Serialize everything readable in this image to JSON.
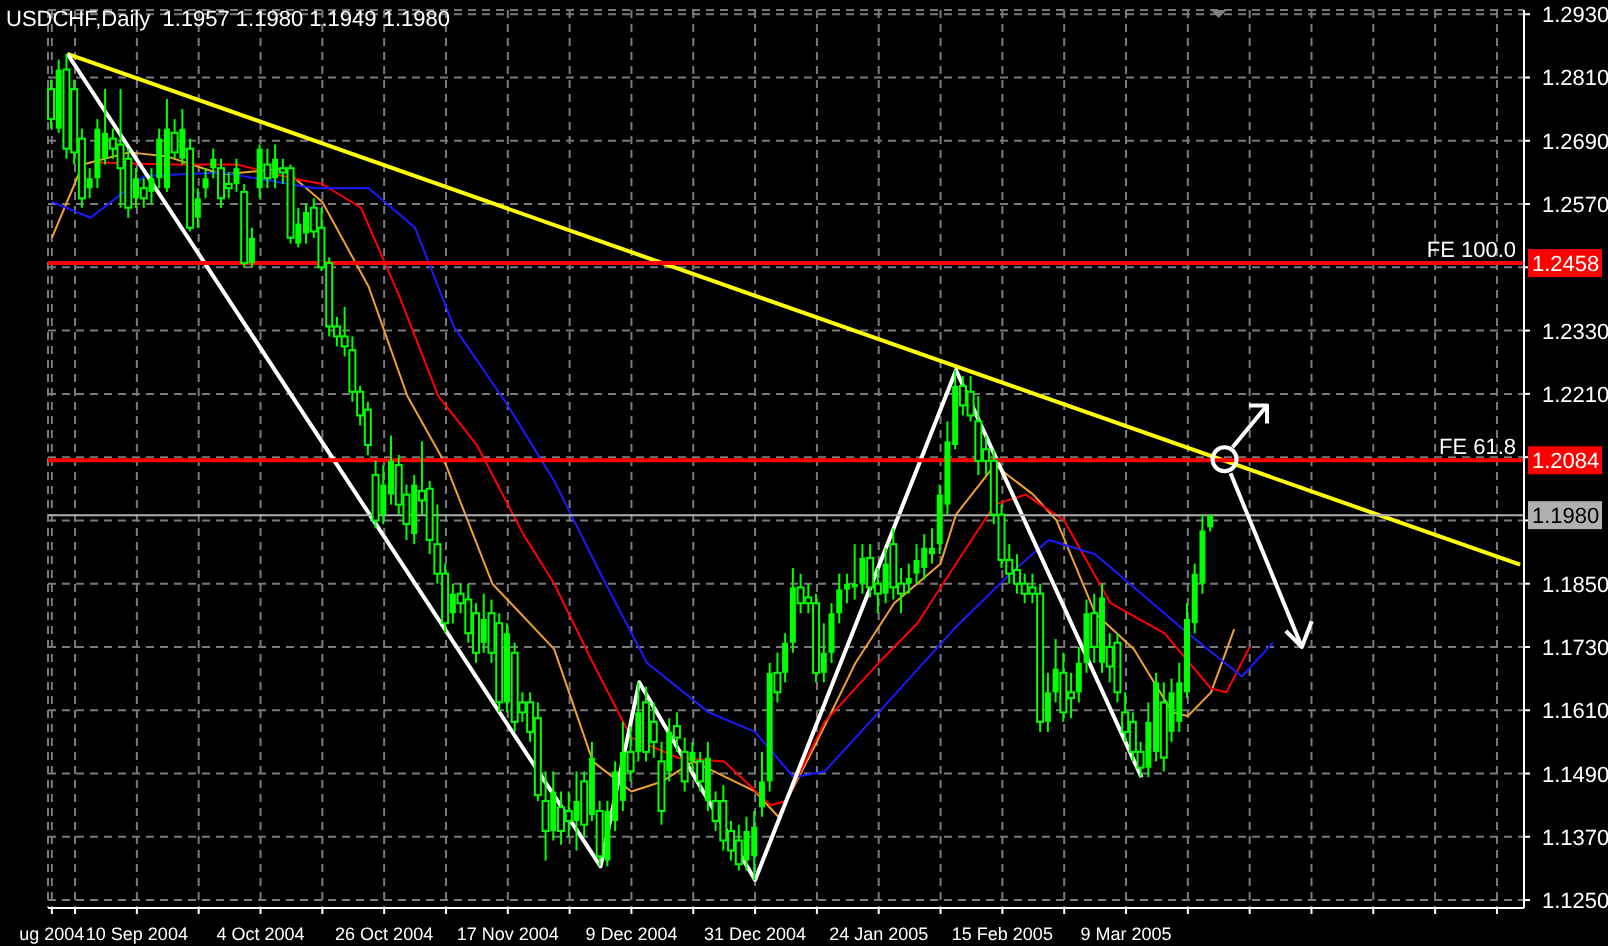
{
  "chart_data": {
    "type": "candlestick",
    "title": "USDCHF,Daily  1.1957 1.1980 1.1949 1.1980",
    "color": "#00ff00",
    "categories": [
      "ug 2004",
      null,
      null,
      null,
      null,
      null,
      null,
      null,
      null,
      null,
      null,
      "10 Sep 2004",
      null,
      null,
      null,
      null,
      null,
      null,
      null,
      null,
      null,
      null,
      null,
      null,
      null,
      null,
      null,
      "4 Oct 2004",
      null,
      null,
      null,
      null,
      null,
      null,
      null,
      null,
      null,
      null,
      null,
      null,
      null,
      null,
      null,
      "26 Oct 2004",
      null,
      null,
      null,
      null,
      null,
      null,
      null,
      null,
      null,
      null,
      null,
      null,
      null,
      null,
      null,
      "17 Nov 2004",
      null,
      null,
      null,
      null,
      null,
      null,
      null,
      null,
      null,
      null,
      null,
      null,
      null,
      null,
      null,
      "9 Dec 2004",
      null,
      null,
      null,
      null,
      null,
      null,
      null,
      null,
      null,
      null,
      null,
      null,
      null,
      null,
      null,
      "31 Dec 2004",
      null,
      null,
      null,
      null,
      null,
      null,
      null,
      null,
      null,
      null,
      null,
      null,
      null,
      null,
      null,
      "24 Jan 2005",
      null,
      null,
      null,
      null,
      null,
      null,
      null,
      null,
      null,
      null,
      null,
      null,
      null,
      null,
      null,
      "15 Feb 2005",
      null,
      null,
      null,
      null,
      null,
      null,
      null,
      null,
      null,
      null,
      null,
      null,
      null,
      null,
      null,
      "9 Mar 2005",
      null,
      null,
      null,
      null,
      null,
      null,
      null,
      null,
      null,
      null,
      null,
      null,
      null,
      null,
      null,
      null,
      null,
      null,
      null,
      null,
      null,
      null,
      null,
      null,
      null,
      null,
      null,
      null,
      null,
      null,
      null,
      null,
      null,
      null,
      null,
      null,
      null,
      null,
      null,
      null,
      null,
      null,
      null,
      null,
      null,
      null,
      null,
      null,
      null,
      null,
      null
    ],
    "ohlc": [
      [
        1.2788,
        1.2806,
        1.2713,
        1.2731
      ],
      [
        1.2713,
        1.2844,
        1.2705,
        1.2825
      ],
      [
        1.2825,
        1.2855,
        1.2656,
        1.2675
      ],
      [
        1.2788,
        1.2806,
        1.2645,
        1.2668
      ],
      [
        1.2694,
        1.2713,
        1.2563,
        1.2581
      ],
      [
        1.26,
        1.2638,
        1.2581,
        1.2619
      ],
      [
        1.2619,
        1.2731,
        1.26,
        1.2713
      ],
      [
        1.2656,
        1.2788,
        1.2645,
        1.2705
      ],
      [
        1.2694,
        1.2713,
        1.2656,
        1.2675
      ],
      [
        1.2683,
        1.2788,
        1.2563,
        1.2638
      ],
      [
        1.2656,
        1.2675,
        1.2544,
        1.2563
      ],
      [
        1.2581,
        1.2638,
        1.2563,
        1.2619
      ],
      [
        1.26,
        1.2619,
        1.2563,
        1.2581
      ],
      [
        1.2593,
        1.2638,
        1.257,
        1.2619
      ],
      [
        1.2619,
        1.2713,
        1.26,
        1.2694
      ],
      [
        1.26,
        1.2769,
        1.2593,
        1.2713
      ],
      [
        1.2705,
        1.2731,
        1.2656,
        1.2668
      ],
      [
        1.2656,
        1.275,
        1.2645,
        1.2713
      ],
      [
        1.2675,
        1.2694,
        1.2518,
        1.2525
      ],
      [
        1.2544,
        1.26,
        1.2525,
        1.2581
      ],
      [
        1.26,
        1.2638,
        1.2581,
        1.2619
      ],
      [
        1.2638,
        1.2675,
        1.2619,
        1.2656
      ],
      [
        1.2638,
        1.2656,
        1.2563,
        1.2581
      ],
      [
        1.2608,
        1.263,
        1.2581,
        1.26
      ],
      [
        1.2608,
        1.2656,
        1.2593,
        1.2638
      ],
      [
        1.2593,
        1.2608,
        1.245,
        1.2458
      ],
      [
        1.2458,
        1.2525,
        1.245,
        1.2506
      ],
      [
        1.26,
        1.2683,
        1.2581,
        1.2675
      ],
      [
        1.2645,
        1.2675,
        1.26,
        1.2619
      ],
      [
        1.2619,
        1.2683,
        1.26,
        1.2656
      ],
      [
        1.2638,
        1.2656,
        1.2608,
        1.263
      ],
      [
        1.2638,
        1.2645,
        1.2495,
        1.2506
      ],
      [
        1.2495,
        1.2563,
        1.2488,
        1.2533
      ],
      [
        1.2514,
        1.257,
        1.2495,
        1.2555
      ],
      [
        1.2563,
        1.2581,
        1.2506,
        1.2518
      ],
      [
        1.2525,
        1.2563,
        1.2443,
        1.245
      ],
      [
        1.2458,
        1.2469,
        1.2319,
        1.2338
      ],
      [
        1.2338,
        1.2356,
        1.23,
        1.2319
      ],
      [
        1.2319,
        1.2375,
        1.2281,
        1.23
      ],
      [
        1.2293,
        1.2319,
        1.2195,
        1.2214
      ],
      [
        1.2214,
        1.2225,
        1.215,
        1.2169
      ],
      [
        1.218,
        1.2195,
        1.2094,
        1.2113
      ],
      [
        1.2056,
        1.2083,
        1.1955,
        1.197
      ],
      [
        1.1981,
        1.2075,
        1.1963,
        1.2038
      ],
      [
        1.2019,
        1.2131,
        1.2,
        1.2083
      ],
      [
        1.2075,
        1.2094,
        1.1981,
        1.2
      ],
      [
        1.2019,
        1.2038,
        1.1933,
        1.1963
      ],
      [
        1.1944,
        1.2056,
        1.1925,
        1.2038
      ],
      [
        1.2026,
        1.212,
        1.1981,
        1.2008
      ],
      [
        1.203,
        1.2045,
        1.1906,
        1.1933
      ],
      [
        1.1925,
        1.2,
        1.185,
        1.1869
      ],
      [
        1.1869,
        1.1888,
        1.1756,
        1.1775
      ],
      [
        1.1794,
        1.185,
        1.1775,
        1.1831
      ],
      [
        1.1831,
        1.185,
        1.1794,
        1.1813
      ],
      [
        1.182,
        1.185,
        1.1738,
        1.1756
      ],
      [
        1.1794,
        1.1813,
        1.17,
        1.1719
      ],
      [
        1.1738,
        1.1831,
        1.1719,
        1.1783
      ],
      [
        1.1794,
        1.182,
        1.17,
        1.1719
      ],
      [
        1.1775,
        1.1794,
        1.1606,
        1.1625
      ],
      [
        1.1625,
        1.1775,
        1.1606,
        1.1756
      ],
      [
        1.1719,
        1.1738,
        1.1569,
        1.1588
      ],
      [
        1.1625,
        1.1644,
        1.1588,
        1.1606
      ],
      [
        1.1625,
        1.1644,
        1.155,
        1.1569
      ],
      [
        1.1595,
        1.1625,
        1.1438,
        1.1449
      ],
      [
        1.1438,
        1.1494,
        1.1325,
        1.1381
      ],
      [
        1.1381,
        1.1494,
        1.1363,
        1.1456
      ],
      [
        1.1426,
        1.1456,
        1.1355,
        1.1381
      ],
      [
        1.1419,
        1.1456,
        1.137,
        1.14
      ],
      [
        1.14,
        1.1494,
        1.1344,
        1.1438
      ],
      [
        1.1475,
        1.1494,
        1.137,
        1.1393
      ],
      [
        1.1411,
        1.155,
        1.14,
        1.152
      ],
      [
        1.1419,
        1.1438,
        1.1314,
        1.1333
      ],
      [
        1.1325,
        1.1438,
        1.1314,
        1.1419
      ],
      [
        1.14,
        1.1513,
        1.1381,
        1.1494
      ],
      [
        1.1438,
        1.1588,
        1.1419,
        1.1531
      ],
      [
        1.1531,
        1.158,
        1.1475,
        1.1494
      ],
      [
        1.1531,
        1.1663,
        1.1513,
        1.1606
      ],
      [
        1.1625,
        1.1655,
        1.1513,
        1.1531
      ],
      [
        1.1588,
        1.1625,
        1.152,
        1.155
      ],
      [
        1.1513,
        1.155,
        1.1393,
        1.1419
      ],
      [
        1.1494,
        1.1595,
        1.1475,
        1.1569
      ],
      [
        1.158,
        1.1606,
        1.1531,
        1.1558
      ],
      [
        1.1531,
        1.1558,
        1.1456,
        1.1475
      ],
      [
        1.1513,
        1.155,
        1.1494,
        1.1531
      ],
      [
        1.1513,
        1.1531,
        1.1456,
        1.1475
      ],
      [
        1.1438,
        1.155,
        1.1419,
        1.152
      ],
      [
        1.1438,
        1.1456,
        1.1381,
        1.14
      ],
      [
        1.1438,
        1.1468,
        1.1344,
        1.1363
      ],
      [
        1.1381,
        1.14,
        1.1325,
        1.1344
      ],
      [
        1.1363,
        1.1393,
        1.1306,
        1.1318
      ],
      [
        1.1325,
        1.1408,
        1.1306,
        1.1381
      ],
      [
        1.1333,
        1.1419,
        1.1288,
        1.1389
      ],
      [
        1.1426,
        1.1531,
        1.1408,
        1.1475
      ],
      [
        1.1475,
        1.17,
        1.1456,
        1.1681
      ],
      [
        1.1681,
        1.1719,
        1.1625,
        1.1644
      ],
      [
        1.1681,
        1.1756,
        1.1663,
        1.1738
      ],
      [
        1.1738,
        1.188,
        1.1719,
        1.1843
      ],
      [
        1.1843,
        1.1869,
        1.1794,
        1.1813
      ],
      [
        1.1824,
        1.185,
        1.1794,
        1.1813
      ],
      [
        1.1813,
        1.1831,
        1.1663,
        1.1681
      ],
      [
        1.1681,
        1.1775,
        1.1663,
        1.1719
      ],
      [
        1.1719,
        1.1813,
        1.17,
        1.1794
      ],
      [
        1.1794,
        1.1869,
        1.1775,
        1.1839
      ],
      [
        1.1839,
        1.1869,
        1.1813,
        1.185
      ],
      [
        1.1843,
        1.1925,
        1.182,
        1.185
      ],
      [
        1.185,
        1.1925,
        1.1831,
        1.1899
      ],
      [
        1.1899,
        1.1925,
        1.1824,
        1.1843
      ],
      [
        1.185,
        1.188,
        1.1794,
        1.1831
      ],
      [
        1.1831,
        1.1918,
        1.1813,
        1.1888
      ],
      [
        1.1925,
        1.1955,
        1.182,
        1.1843
      ],
      [
        1.185,
        1.188,
        1.1794,
        1.1831
      ],
      [
        1.185,
        1.1888,
        1.1831,
        1.1861
      ],
      [
        1.1869,
        1.1925,
        1.185,
        1.1895
      ],
      [
        1.188,
        1.1944,
        1.1858,
        1.1918
      ],
      [
        1.1906,
        1.1955,
        1.1888,
        1.1918
      ],
      [
        1.1925,
        1.2038,
        1.1906,
        1.2019
      ],
      [
        1.2,
        1.2158,
        1.1981,
        1.212
      ],
      [
        1.2113,
        1.2255,
        1.2105,
        1.2225
      ],
      [
        1.2225,
        1.2244,
        1.2169,
        1.2188
      ],
      [
        1.2214,
        1.2244,
        1.2158,
        1.2169
      ],
      [
        1.2158,
        1.2206,
        1.2056,
        1.2083
      ],
      [
        1.2105,
        1.2131,
        1.2056,
        1.2083
      ],
      [
        1.2083,
        1.2105,
        1.1963,
        1.1981
      ],
      [
        1.1981,
        1.2,
        1.188,
        1.1895
      ],
      [
        1.1895,
        1.1925,
        1.185,
        1.1869
      ],
      [
        1.1876,
        1.1906,
        1.1831,
        1.185
      ],
      [
        1.185,
        1.1869,
        1.1813,
        1.1831
      ],
      [
        1.1843,
        1.1869,
        1.1813,
        1.1831
      ],
      [
        1.1831,
        1.185,
        1.1569,
        1.1588
      ],
      [
        1.1588,
        1.1681,
        1.1569,
        1.1644
      ],
      [
        1.1644,
        1.1745,
        1.1625,
        1.1689
      ],
      [
        1.1681,
        1.1719,
        1.1588,
        1.1606
      ],
      [
        1.1644,
        1.1681,
        1.1595,
        1.1633
      ],
      [
        1.1644,
        1.173,
        1.1625,
        1.17
      ],
      [
        1.17,
        1.182,
        1.1681,
        1.1794
      ],
      [
        1.1794,
        1.1831,
        1.17,
        1.173
      ],
      [
        1.17,
        1.185,
        1.1681,
        1.1824
      ],
      [
        1.173,
        1.1756,
        1.1663,
        1.1693
      ],
      [
        1.1738,
        1.1756,
        1.1625,
        1.1644
      ],
      [
        1.1606,
        1.1644,
        1.155,
        1.1569
      ],
      [
        1.1588,
        1.1606,
        1.1513,
        1.1531
      ],
      [
        1.1531,
        1.155,
        1.1483,
        1.1501
      ],
      [
        1.1501,
        1.1625,
        1.1483,
        1.1588
      ],
      [
        1.1531,
        1.1681,
        1.1513,
        1.1663
      ],
      [
        1.1625,
        1.1663,
        1.1494,
        1.152
      ],
      [
        1.1569,
        1.167,
        1.155,
        1.1644
      ],
      [
        1.1588,
        1.17,
        1.1569,
        1.1663
      ],
      [
        1.1644,
        1.1813,
        1.1633,
        1.1783
      ],
      [
        1.1775,
        1.1888,
        1.1756,
        1.1869
      ],
      [
        1.185,
        1.1981,
        1.1831,
        1.1951
      ],
      [
        1.1957,
        1.198,
        1.1949,
        1.198
      ],
      null,
      null,
      null,
      null,
      null,
      null,
      null,
      null,
      null,
      null,
      null,
      null,
      null,
      null,
      null,
      null,
      null,
      null,
      null,
      null,
      null,
      null,
      null,
      null,
      null,
      null,
      null,
      null,
      null,
      null,
      null,
      null,
      null,
      null,
      null,
      null,
      null,
      null,
      null,
      null
    ],
    "series": [
      {
        "type": "line",
        "color": "#f0a030",
        "values": [
          1.2506,
          null,
          null,
          null,
          1.2645,
          null,
          null,
          null,
          null,
          null,
          1.2668,
          null,
          null,
          null,
          null,
          1.266,
          null,
          null,
          null,
          null,
          null,
          null,
          1.2626,
          null,
          null,
          null,
          null,
          null,
          null,
          null,
          1.2637,
          null,
          null,
          null,
          null,
          1.2574,
          null,
          null,
          null,
          null,
          null,
          1.2413,
          null,
          null,
          null,
          null,
          1.2206,
          null,
          null,
          null,
          null,
          1.2075,
          null,
          null,
          null,
          null,
          null,
          1.185,
          null,
          null,
          null,
          null,
          null,
          null,
          null,
          1.1726,
          null,
          null,
          null,
          null,
          1.1513,
          null,
          null,
          null,
          null,
          1.1456,
          null,
          null,
          null,
          1.1475,
          null,
          null,
          null,
          1.1513,
          null,
          null,
          null,
          null,
          null,
          null,
          null,
          1.1456,
          null,
          null,
          1.1408,
          null,
          null,
          null,
          null,
          1.155,
          null,
          null,
          null,
          null,
          1.17,
          null,
          null,
          null,
          null,
          1.1813,
          null,
          null,
          null,
          null,
          null,
          1.1888,
          null,
          1.1981,
          null,
          null,
          null,
          null,
          1.2075,
          null,
          null,
          null,
          null,
          1.2019,
          null,
          null,
          1.197,
          null,
          null,
          null,
          null,
          1.1794,
          null,
          null,
          null,
          null,
          1.1726,
          null,
          null,
          null,
          null,
          1.1606,
          null,
          1.1599,
          null,
          null,
          1.1644,
          null,
          null,
          1.1764,
          null,
          null,
          null,
          null,
          null,
          null,
          null,
          null,
          null,
          null,
          null,
          null,
          null,
          null,
          null,
          null,
          null,
          null,
          null,
          null,
          null,
          null,
          null,
          null,
          null,
          null,
          null,
          null,
          null,
          null,
          null,
          null,
          null,
          null,
          null,
          null,
          null
        ]
      },
      {
        "type": "line",
        "color": "#ff0000",
        "values": [
          null,
          null,
          null,
          null,
          null,
          null,
          1.2649,
          null,
          null,
          null,
          null,
          null,
          null,
          null,
          null,
          1.2645,
          null,
          null,
          null,
          null,
          null,
          null,
          null,
          null,
          1.2645,
          null,
          null,
          null,
          null,
          null,
          null,
          1.2619,
          null,
          null,
          null,
          1.2608,
          null,
          null,
          null,
          null,
          1.2563,
          null,
          null,
          null,
          null,
          1.2394,
          null,
          null,
          null,
          null,
          1.2206,
          null,
          null,
          null,
          null,
          1.2113,
          null,
          null,
          null,
          null,
          null,
          1.1944,
          null,
          null,
          null,
          1.185,
          null,
          null,
          null,
          null,
          1.17,
          null,
          null,
          null,
          null,
          1.1558,
          null,
          null,
          null,
          null,
          null,
          1.152,
          null,
          null,
          null,
          null,
          null,
          1.1513,
          null,
          null,
          null,
          null,
          null,
          1.143,
          null,
          1.1438,
          null,
          null,
          null,
          null,
          1.1588,
          null,
          null,
          null,
          null,
          null,
          null,
          1.17,
          null,
          null,
          null,
          null,
          1.1775,
          null,
          null,
          null,
          null,
          1.1888,
          null,
          null,
          null,
          null,
          1.2,
          null,
          null,
          null,
          1.2019,
          null,
          null,
          null,
          null,
          1.197,
          null,
          null,
          null,
          null,
          null,
          1.1813,
          null,
          null,
          null,
          null,
          null,
          null,
          1.1756,
          null,
          null,
          null,
          null,
          null,
          1.1651,
          null,
          1.1644,
          null,
          null,
          1.173,
          null,
          null,
          null,
          null,
          null,
          null,
          null,
          null,
          null,
          null,
          null,
          null,
          null,
          null,
          null,
          null,
          null,
          null,
          null,
          null,
          null,
          null,
          null,
          null,
          null,
          null,
          null,
          null,
          null,
          null,
          null,
          null,
          null,
          null,
          null
        ]
      },
      {
        "type": "line",
        "color": "#1a1aff",
        "values": [
          1.2574,
          null,
          null,
          null,
          null,
          1.2544,
          null,
          null,
          null,
          null,
          null,
          null,
          1.2623,
          null,
          null,
          null,
          null,
          null,
          null,
          null,
          null,
          null,
          1.263,
          null,
          null,
          null,
          null,
          null,
          null,
          null,
          null,
          null,
          null,
          null,
          1.26,
          null,
          null,
          null,
          null,
          null,
          null,
          1.26,
          null,
          null,
          null,
          null,
          null,
          1.2525,
          null,
          null,
          null,
          null,
          1.2338,
          null,
          null,
          null,
          null,
          null,
          null,
          1.2188,
          null,
          null,
          null,
          null,
          null,
          1.2045,
          null,
          null,
          null,
          null,
          null,
          1.1869,
          null,
          null,
          null,
          null,
          null,
          1.17,
          null,
          null,
          null,
          null,
          null,
          null,
          null,
          1.1606,
          null,
          null,
          null,
          null,
          null,
          1.1569,
          null,
          null,
          null,
          null,
          1.1483,
          null,
          null,
          null,
          1.1494,
          null,
          null,
          null,
          null,
          null,
          null,
          1.1606,
          null,
          null,
          null,
          null,
          null,
          null,
          null,
          null,
          null,
          1.1768,
          null,
          null,
          null,
          null,
          null,
          null,
          1.1869,
          null,
          null,
          null,
          null,
          1.1933,
          null,
          null,
          null,
          null,
          null,
          1.1906,
          null,
          null,
          null,
          null,
          null,
          1.1831,
          null,
          null,
          null,
          null,
          null,
          1.1756,
          null,
          null,
          null,
          null,
          null,
          null,
          1.1674,
          null,
          null,
          null,
          1.1738,
          null,
          null,
          null,
          null,
          null,
          null,
          null,
          null,
          null,
          null,
          null,
          null,
          null,
          null,
          null,
          null,
          null,
          null,
          null,
          null,
          null,
          null,
          null,
          null,
          null,
          null,
          null,
          null,
          null,
          null,
          null,
          null
        ]
      },
      {
        "type": "line",
        "color": "#ffff00",
        "values": [
          null,
          null,
          1.2855,
          null,
          null,
          null,
          null,
          null,
          null,
          null,
          null,
          null,
          null,
          null,
          null,
          null,
          null,
          null,
          null,
          null,
          null,
          null,
          null,
          null,
          null,
          null,
          null,
          null,
          null,
          null,
          null,
          null,
          null,
          null,
          null,
          null,
          null,
          null,
          null,
          null,
          null,
          null,
          null,
          null,
          null,
          null,
          null,
          null,
          null,
          null,
          null,
          null,
          null,
          null,
          null,
          null,
          null,
          null,
          null,
          null,
          null,
          null,
          null,
          null,
          null,
          null,
          null,
          null,
          null,
          null,
          null,
          null,
          null,
          null,
          null,
          null,
          null,
          null,
          null,
          null,
          null,
          null,
          null,
          null,
          null,
          null,
          null,
          null,
          null,
          null,
          null,
          null,
          null,
          null,
          null,
          null,
          null,
          null,
          null,
          null,
          null,
          null,
          null,
          null,
          null,
          null,
          null,
          null,
          null,
          null,
          null,
          null,
          null,
          null,
          null,
          null,
          null,
          null,
          null,
          null,
          null,
          null,
          null,
          null,
          null,
          null,
          null,
          null,
          null,
          null,
          null,
          null,
          null,
          null,
          null,
          null,
          null,
          null,
          null,
          null,
          null,
          null,
          null,
          null,
          null,
          null,
          null,
          null,
          null,
          null,
          null,
          null,
          null,
          null,
          null,
          null,
          null,
          null,
          null,
          null,
          null,
          null,
          null,
          null,
          null,
          null,
          null,
          null,
          null,
          null,
          null,
          null,
          null,
          null,
          null,
          null,
          null,
          null,
          null,
          null,
          null,
          null,
          null,
          null,
          null,
          null,
          null,
          null,
          null,
          null,
          1.1886
        ]
      },
      {
        "type": "line",
        "color": "#ffffff",
        "values": [
          null,
          null,
          1.2855,
          null,
          null,
          null,
          null,
          null,
          null,
          null,
          null,
          null,
          null,
          null,
          null,
          null,
          null,
          null,
          null,
          null,
          null,
          null,
          null,
          null,
          null,
          null,
          null,
          null,
          null,
          null,
          null,
          null,
          null,
          null,
          null,
          null,
          null,
          null,
          null,
          null,
          null,
          null,
          null,
          null,
          null,
          null,
          null,
          null,
          null,
          null,
          null,
          null,
          null,
          null,
          null,
          null,
          null,
          null,
          null,
          null,
          null,
          null,
          null,
          null,
          null,
          null,
          null,
          null,
          null,
          null,
          null,
          1.1314,
          null,
          null,
          null,
          null,
          1.1663,
          null,
          null,
          null,
          null,
          null,
          null,
          null,
          null,
          null,
          null,
          null,
          null,
          null,
          null,
          1.1288,
          null,
          null,
          null,
          null,
          null,
          null,
          null,
          null,
          null,
          null,
          null,
          null,
          null,
          null,
          null,
          null,
          null,
          null,
          null,
          null,
          null,
          null,
          null,
          null,
          null,
          1.2255,
          null,
          null,
          null,
          null,
          null,
          null,
          null,
          null,
          null,
          null,
          null,
          null,
          null,
          null,
          null,
          null,
          null,
          null,
          null,
          null,
          null,
          null,
          null,
          1.1483,
          null,
          null,
          null,
          null,
          null,
          null,
          null,
          null,
          null,
          null,
          null,
          null,
          null,
          null,
          null,
          null,
          null,
          null,
          null,
          null,
          null,
          null,
          null,
          null,
          null,
          null,
          null,
          null,
          null,
          null,
          null,
          null,
          null,
          null,
          null,
          null,
          null,
          null,
          null,
          null,
          null,
          null,
          null,
          null,
          null,
          null,
          null,
          null,
          null
        ]
      }
    ],
    "ylim": [
      1.1235,
      1.2938
    ],
    "yticks": [
      {
        "value": 1.293,
        "label": "1.2930"
      },
      {
        "value": 1.281,
        "label": "1.2810"
      },
      {
        "value": 1.269,
        "label": "1.2690"
      },
      {
        "value": 1.257,
        "label": "1.2570"
      },
      {
        "value": 1.245,
        "label": null
      },
      {
        "value": 1.233,
        "label": "1.2330"
      },
      {
        "value": 1.221,
        "label": "1.2210"
      },
      {
        "value": 1.209,
        "label": null
      },
      {
        "value": 1.197,
        "label": null
      },
      {
        "value": 1.185,
        "label": "1.1850"
      },
      {
        "value": 1.173,
        "label": "1.1730"
      },
      {
        "value": 1.161,
        "label": "1.1610"
      },
      {
        "value": 1.149,
        "label": "1.1490"
      },
      {
        "value": 1.137,
        "label": "1.1370"
      },
      {
        "value": 1.125,
        "label": "1.1250"
      }
    ],
    "ref_lines": [
      {
        "axis": "y",
        "value": 1.2458,
        "label": "FE 100.0",
        "color": "#ff0000"
      },
      {
        "axis": "y",
        "value": 1.2084,
        "label": "FE 61.8",
        "color": "#ff0000"
      },
      {
        "axis": "y",
        "value": 1.198,
        "color": "#b0b0b0"
      }
    ],
    "annotations": [
      {
        "text": "1.2458",
        "y": 1.2458
      },
      {
        "text": "1.2084",
        "y": 1.2084
      },
      {
        "text": "1.1980",
        "y": 1.198
      }
    ],
    "grid": true
  }
}
